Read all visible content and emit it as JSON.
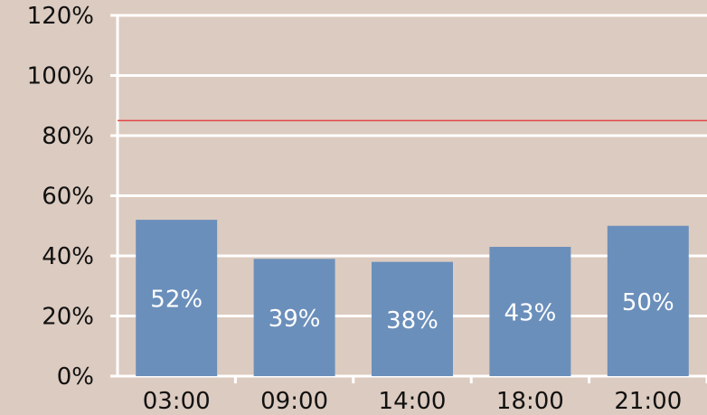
{
  "chart_data": {
    "type": "bar",
    "categories": [
      "03:00",
      "09:00",
      "14:00",
      "18:00",
      "21:00"
    ],
    "values": [
      52,
      39,
      38,
      43,
      50
    ],
    "value_labels": [
      "52%",
      "39%",
      "38%",
      "43%",
      "50%"
    ],
    "title": "",
    "xlabel": "",
    "ylabel": "",
    "ylim": [
      0,
      120
    ],
    "y_ticks": [
      0,
      20,
      40,
      60,
      80,
      100,
      120
    ],
    "y_tick_labels": [
      "0%",
      "20%",
      "40%",
      "60%",
      "80%",
      "100%",
      "120%"
    ],
    "reference_line": 85,
    "grid": true,
    "legend": "none",
    "colors": {
      "background": "#dccbc0",
      "bar": "#6b8fbb",
      "grid": "#ffffff",
      "reference_line": "#e04848",
      "axis_text": "#111111",
      "bar_text": "#ffffff"
    }
  }
}
